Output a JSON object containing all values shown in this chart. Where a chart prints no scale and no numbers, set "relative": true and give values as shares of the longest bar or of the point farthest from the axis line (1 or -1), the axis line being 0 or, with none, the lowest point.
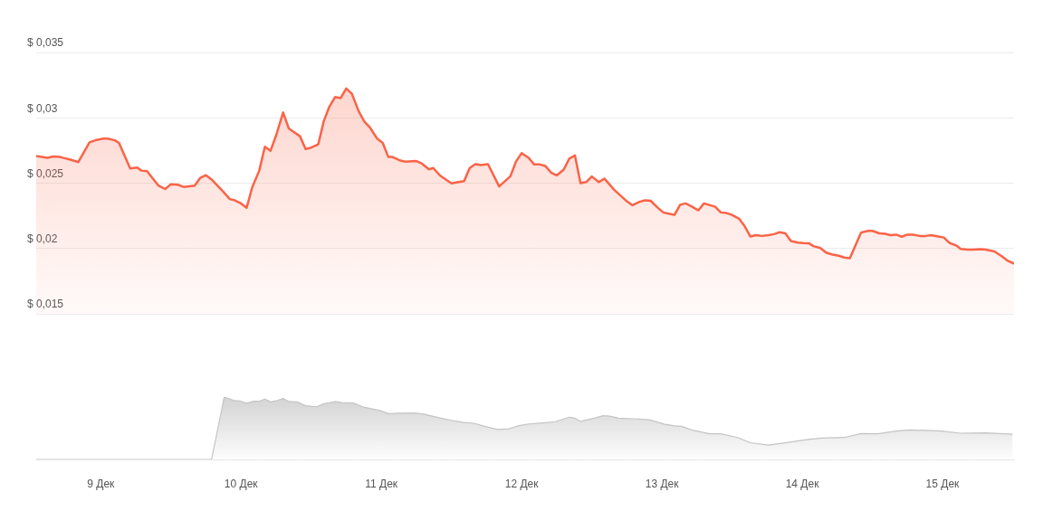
{
  "chart_data": [
    {
      "type": "area",
      "tick_labels": "y",
      "grid": "y",
      "xlim": [
        8.54,
        15.51
      ],
      "ylim": [
        0.015,
        0.035
      ],
      "yticks": [
        {
          "value": 0.015,
          "label": "$ 0,015"
        },
        {
          "value": 0.02,
          "label": "$ 0,02"
        },
        {
          "value": 0.025,
          "label": "$ 0,025"
        },
        {
          "value": 0.03,
          "label": "$ 0,03"
        },
        {
          "value": 0.035,
          "label": "$ 0,035"
        }
      ],
      "x": [
        8.54,
        8.62,
        8.66,
        8.71,
        8.79,
        8.84,
        8.92,
        8.97,
        9.02,
        9.05,
        9.1,
        9.13,
        9.21,
        9.26,
        9.29,
        9.33,
        9.41,
        9.46,
        9.5,
        9.55,
        9.59,
        9.63,
        9.67,
        9.71,
        9.75,
        9.79,
        9.87,
        9.92,
        9.95,
        10.0,
        10.04,
        10.08,
        10.13,
        10.17,
        10.21,
        10.25,
        10.3,
        10.34,
        10.37,
        10.42,
        10.46,
        10.5,
        10.55,
        10.59,
        10.63,
        10.67,
        10.71,
        10.75,
        10.79,
        10.84,
        10.88,
        10.92,
        10.97,
        11.01,
        11.05,
        11.08,
        11.13,
        11.17,
        11.25,
        11.29,
        11.34,
        11.37,
        11.42,
        11.46,
        11.5,
        11.55,
        11.59,
        11.63,
        11.67,
        11.71,
        11.76,
        11.84,
        11.92,
        11.96,
        12.0,
        12.05,
        12.09,
        12.13,
        12.17,
        12.21,
        12.25,
        12.3,
        12.34,
        12.38,
        12.42,
        12.46,
        12.5,
        12.55,
        12.59,
        12.66,
        12.75,
        12.79,
        12.84,
        12.88,
        12.92,
        12.97,
        13.01,
        13.05,
        13.09,
        13.13,
        13.17,
        13.21,
        13.26,
        13.3,
        13.38,
        13.42,
        13.46,
        13.5,
        13.55,
        13.59,
        13.63,
        13.67,
        13.71,
        13.76,
        13.8,
        13.84,
        13.88,
        13.92,
        13.97,
        14.01,
        14.05,
        14.08,
        14.13,
        14.17,
        14.21,
        14.26,
        14.3,
        14.34,
        14.42,
        14.47,
        14.5,
        14.55,
        14.59,
        14.63,
        14.67,
        14.71,
        14.75,
        14.79,
        14.84,
        14.88,
        14.92,
        14.97,
        15.01,
        15.05,
        15.1,
        15.13,
        15.18,
        15.22,
        15.27,
        15.31,
        15.37,
        15.42,
        15.46,
        15.51
      ],
      "series": [
        {
          "color": "#fa6347",
          "values": [
            0.02708,
            0.02694,
            0.02704,
            0.027,
            0.02678,
            0.02661,
            0.02812,
            0.02831,
            0.02841,
            0.02841,
            0.02828,
            0.02808,
            0.02612,
            0.02619,
            0.02596,
            0.02592,
            0.02482,
            0.02455,
            0.02492,
            0.02488,
            0.02471,
            0.02476,
            0.02481,
            0.02541,
            0.02561,
            0.02528,
            0.02439,
            0.02378,
            0.02371,
            0.02345,
            0.02312,
            0.02469,
            0.02596,
            0.02778,
            0.02747,
            0.02865,
            0.03041,
            0.02919,
            0.02896,
            0.02859,
            0.02761,
            0.02772,
            0.02796,
            0.02975,
            0.03086,
            0.03159,
            0.03151,
            0.03224,
            0.03184,
            0.03047,
            0.02969,
            0.02924,
            0.02841,
            0.02808,
            0.027,
            0.027,
            0.02675,
            0.02665,
            0.02669,
            0.02649,
            0.02606,
            0.02616,
            0.02557,
            0.02528,
            0.02498,
            0.02508,
            0.02516,
            0.02616,
            0.02645,
            0.02639,
            0.02645,
            0.02475,
            0.02553,
            0.02665,
            0.02729,
            0.02694,
            0.02643,
            0.02643,
            0.02631,
            0.02581,
            0.02559,
            0.02604,
            0.02688,
            0.02712,
            0.025,
            0.02508,
            0.02551,
            0.02508,
            0.02535,
            0.02449,
            0.02361,
            0.02331,
            0.02357,
            0.02369,
            0.02365,
            0.02312,
            0.02276,
            0.02266,
            0.02257,
            0.02335,
            0.02345,
            0.02322,
            0.02292,
            0.02345,
            0.02319,
            0.02276,
            0.02271,
            0.02257,
            0.02228,
            0.02171,
            0.02092,
            0.02102,
            0.02096,
            0.02102,
            0.0211,
            0.02125,
            0.02116,
            0.02057,
            0.02045,
            0.02041,
            0.02039,
            0.02018,
            0.02004,
            0.01969,
            0.01955,
            0.01945,
            0.01931,
            0.01925,
            0.02122,
            0.02135,
            0.02135,
            0.02116,
            0.02112,
            0.02102,
            0.02106,
            0.0209,
            0.02106,
            0.02106,
            0.02096,
            0.02096,
            0.02102,
            0.02092,
            0.02084,
            0.02043,
            0.02022,
            0.01996,
            0.01992,
            0.01992,
            0.01994,
            0.01992,
            0.01978,
            0.01943,
            0.0191,
            0.01884
          ]
        }
      ]
    },
    {
      "type": "area",
      "relative": true,
      "tick_labels": "x",
      "xlim": [
        8.54,
        15.51
      ],
      "xticks": [
        {
          "value": 9,
          "label": "9 Дек"
        },
        {
          "value": 10,
          "label": "10 Дек"
        },
        {
          "value": 11,
          "label": "11 Дек"
        },
        {
          "value": 12,
          "label": "12 Дек"
        },
        {
          "value": 13,
          "label": "13 Дек"
        },
        {
          "value": 14,
          "label": "14 Дек"
        },
        {
          "value": 15,
          "label": "15 Дек"
        }
      ],
      "x": [
        8.54,
        9.79,
        9.88,
        9.95,
        9.99,
        10.04,
        10.09,
        10.13,
        10.17,
        10.21,
        10.25,
        10.3,
        10.34,
        10.4,
        10.46,
        10.54,
        10.59,
        10.67,
        10.72,
        10.8,
        10.88,
        10.99,
        11.05,
        11.12,
        11.24,
        11.31,
        11.41,
        11.51,
        11.58,
        11.66,
        11.73,
        11.83,
        11.91,
        11.98,
        12.05,
        12.15,
        12.24,
        12.34,
        12.38,
        12.42,
        12.53,
        12.58,
        12.63,
        12.69,
        12.8,
        12.91,
        13.02,
        13.09,
        13.14,
        13.22,
        13.34,
        13.42,
        13.54,
        13.63,
        13.76,
        13.9,
        14.04,
        14.14,
        14.3,
        14.42,
        14.54,
        14.68,
        14.77,
        14.98,
        15.13,
        15.31,
        15.5
      ],
      "series": [
        {
          "color": "#c4c4c4",
          "values": [
            0,
            0,
            1,
            0.944,
            0.939,
            0.9,
            0.934,
            0.934,
            0.967,
            0.922,
            0.939,
            0.977,
            0.928,
            0.922,
            0.861,
            0.844,
            0.895,
            0.928,
            0.911,
            0.906,
            0.834,
            0.784,
            0.734,
            0.74,
            0.746,
            0.723,
            0.668,
            0.623,
            0.596,
            0.58,
            0.535,
            0.481,
            0.492,
            0.541,
            0.569,
            0.586,
            0.605,
            0.678,
            0.662,
            0.61,
            0.668,
            0.7,
            0.694,
            0.662,
            0.652,
            0.636,
            0.563,
            0.537,
            0.531,
            0.468,
            0.41,
            0.41,
            0.352,
            0.268,
            0.231,
            0.273,
            0.32,
            0.342,
            0.352,
            0.416,
            0.41,
            0.457,
            0.473,
            0.457,
            0.42,
            0.426,
            0.404
          ]
        }
      ]
    }
  ]
}
